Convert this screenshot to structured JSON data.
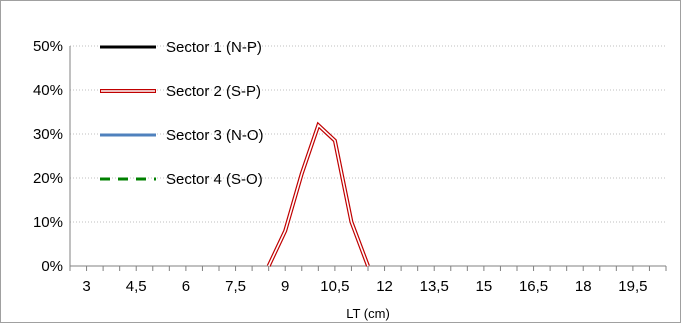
{
  "chart_data": {
    "type": "line",
    "xlabel": "LT (cm)",
    "ylabel": "",
    "title": "",
    "x_ticks": [
      "3",
      "4,5",
      "6",
      "7,5",
      "9",
      "10,5",
      "12",
      "13,5",
      "15",
      "16,5",
      "18",
      "19,5"
    ],
    "xlim": [
      2.5,
      20.5
    ],
    "ylim": [
      0,
      50
    ],
    "y_ticks": [
      "0%",
      "10%",
      "20%",
      "30%",
      "40%",
      "50%"
    ],
    "y_grid": true,
    "legend_position": "top-left",
    "series": [
      {
        "name": "Sector 1 (N-P)",
        "color": "#000000",
        "style": "solid",
        "points": []
      },
      {
        "name": "Sector 2 (S-P)",
        "color": "#c00000",
        "style": "double",
        "points": [
          [
            8.5,
            0
          ],
          [
            9,
            8
          ],
          [
            9.5,
            21
          ],
          [
            10,
            32
          ],
          [
            10.5,
            28.5
          ],
          [
            11,
            10
          ],
          [
            11.5,
            0
          ]
        ]
      },
      {
        "name": "Sector 3 (N-O)",
        "color": "#4f81bd",
        "style": "solid",
        "points": []
      },
      {
        "name": "Sector 4 (S-O)",
        "color": "#008000",
        "style": "dashed",
        "points": []
      }
    ]
  }
}
